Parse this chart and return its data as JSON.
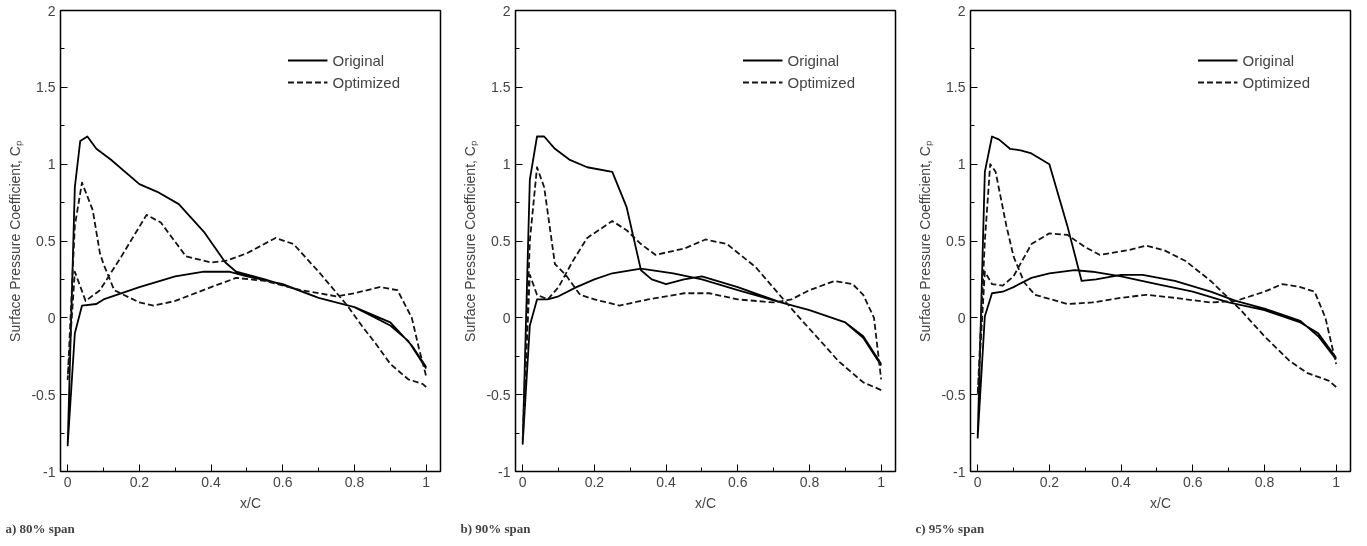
{
  "chart_data": [
    {
      "type": "line",
      "xlabel": "x/C",
      "ylabel": "Surface Pressure Coefficient, Cₚ",
      "xlim": [
        -0.02,
        1.04
      ],
      "ylim": [
        -1,
        2
      ],
      "xticks": [
        0,
        0.2,
        0.4,
        0.6,
        0.8,
        1
      ],
      "yticks": [
        -1,
        -0.5,
        0,
        0.5,
        1,
        1.5,
        2
      ],
      "legend": "top right",
      "annotations": [
        "a) 80% span"
      ],
      "series": [
        {
          "name": "Original",
          "color": "#000000",
          "line_style": "solid",
          "x": [
            1,
            0.95,
            0.9,
            0.8,
            0.7,
            0.6,
            0.5,
            0.45,
            0.38,
            0.3,
            0.2,
            0.1,
            0.08,
            0.04,
            0.02,
            0,
            0.02,
            0.035,
            0.055,
            0.08,
            0.12,
            0.2,
            0.25,
            0.31,
            0.38,
            0.44,
            0.47,
            0.55,
            0.62,
            0.7,
            0.8,
            0.9,
            0.96,
            1
          ],
          "values": [
            -0.33,
            -0.15,
            -0.05,
            0.07,
            0.13,
            0.22,
            0.27,
            0.3,
            0.3,
            0.27,
            0.2,
            0.12,
            0.09,
            0.08,
            -0.1,
            -0.83,
            0.85,
            1.15,
            1.18,
            1.1,
            1.03,
            0.87,
            0.82,
            0.74,
            0.56,
            0.36,
            0.3,
            0.25,
            0.2,
            0.13,
            0.07,
            -0.03,
            -0.18,
            -0.32
          ]
        },
        {
          "name": "Optimized",
          "color": "#141414",
          "line_style": "dashed",
          "x": [
            1,
            0.99,
            0.95,
            0.9,
            0.86,
            0.82,
            0.78,
            0.7,
            0.63,
            0.58,
            0.5,
            0.44,
            0.4,
            0.33,
            0.26,
            0.22,
            0.15,
            0.09,
            0.05,
            0.02,
            0,
            0.02,
            0.04,
            0.07,
            0.09,
            0.1,
            0.13,
            0.2,
            0.24,
            0.3,
            0.4,
            0.47,
            0.55,
            0.65,
            0.75,
            0.8,
            0.87,
            0.92,
            0.96,
            0.98,
            1
          ],
          "values": [
            -0.45,
            -0.43,
            -0.4,
            -0.3,
            -0.17,
            -0.05,
            0.08,
            0.3,
            0.48,
            0.52,
            0.42,
            0.37,
            0.36,
            0.4,
            0.62,
            0.67,
            0.4,
            0.18,
            0.11,
            0.3,
            -0.4,
            0.6,
            0.88,
            0.7,
            0.42,
            0.35,
            0.18,
            0.1,
            0.08,
            0.11,
            0.2,
            0.26,
            0.24,
            0.18,
            0.14,
            0.16,
            0.2,
            0.18,
            0.0,
            -0.2,
            -0.38
          ]
        }
      ]
    },
    {
      "type": "line",
      "xlabel": "x/C",
      "ylabel": "Surface Pressure Coefficient, Cₚ",
      "xlim": [
        -0.02,
        1.04
      ],
      "ylim": [
        -1,
        2
      ],
      "xticks": [
        0,
        0.2,
        0.4,
        0.6,
        0.8,
        1
      ],
      "yticks": [
        -1,
        -0.5,
        0,
        0.5,
        1,
        1.5,
        2
      ],
      "legend": "top right",
      "annotations": [
        "b) 90% span"
      ],
      "series": [
        {
          "name": "Original",
          "color": "#000000",
          "line_style": "solid",
          "x": [
            1,
            0.95,
            0.9,
            0.8,
            0.72,
            0.6,
            0.5,
            0.45,
            0.4,
            0.36,
            0.33,
            0.29,
            0.25,
            0.18,
            0.13,
            0.09,
            0.06,
            0.04,
            0.02,
            0,
            0.02,
            0.04,
            0.07,
            0.1,
            0.15,
            0.2,
            0.25,
            0.33,
            0.42,
            0.5,
            0.6,
            0.72,
            0.8,
            0.9,
            0.95,
            1
          ],
          "values": [
            -0.3,
            -0.12,
            -0.03,
            0.05,
            0.1,
            0.2,
            0.27,
            0.25,
            0.22,
            0.25,
            0.31,
            0.72,
            0.95,
            0.98,
            1.03,
            1.1,
            1.18,
            1.18,
            0.9,
            -0.82,
            -0.05,
            0.12,
            0.12,
            0.14,
            0.2,
            0.25,
            0.29,
            0.32,
            0.29,
            0.25,
            0.18,
            0.1,
            0.05,
            -0.03,
            -0.13,
            -0.31
          ]
        },
        {
          "name": "Optimized",
          "color": "#141414",
          "line_style": "dashed",
          "x": [
            1,
            0.95,
            0.88,
            0.85,
            0.78,
            0.72,
            0.65,
            0.57,
            0.51,
            0.45,
            0.37,
            0.33,
            0.29,
            0.25,
            0.18,
            0.14,
            0.1,
            0.07,
            0.04,
            0.02,
            0,
            0.02,
            0.04,
            0.06,
            0.09,
            0.12,
            0.16,
            0.2,
            0.27,
            0.35,
            0.45,
            0.52,
            0.6,
            0.7,
            0.75,
            0.8,
            0.87,
            0.92,
            0.95,
            0.98,
            1
          ],
          "values": [
            -0.47,
            -0.42,
            -0.28,
            -0.2,
            -0.02,
            0.14,
            0.33,
            0.48,
            0.51,
            0.45,
            0.41,
            0.48,
            0.57,
            0.63,
            0.52,
            0.37,
            0.2,
            0.12,
            0.15,
            0.28,
            -0.8,
            0.5,
            0.98,
            0.85,
            0.35,
            0.28,
            0.15,
            0.12,
            0.08,
            0.12,
            0.16,
            0.16,
            0.12,
            0.1,
            0.12,
            0.18,
            0.24,
            0.22,
            0.15,
            0.0,
            -0.4
          ]
        }
      ]
    },
    {
      "type": "line",
      "xlabel": "x/C",
      "ylabel": "Surface Pressure Coefficient, Cₚ",
      "xlim": [
        -0.02,
        1.04
      ],
      "ylim": [
        -1,
        2
      ],
      "xticks": [
        0,
        0.2,
        0.4,
        0.6,
        0.8,
        1
      ],
      "yticks": [
        -1,
        -0.5,
        0,
        0.5,
        1,
        1.5,
        2
      ],
      "legend": "top right",
      "annotations": [
        "c) 95% span"
      ],
      "series": [
        {
          "name": "Original",
          "color": "#000000",
          "line_style": "solid",
          "x": [
            1,
            0.95,
            0.9,
            0.8,
            0.72,
            0.65,
            0.55,
            0.46,
            0.4,
            0.33,
            0.29,
            0.25,
            0.2,
            0.15,
            0.12,
            0.09,
            0.06,
            0.04,
            0.02,
            0,
            0.02,
            0.04,
            0.07,
            0.1,
            0.15,
            0.2,
            0.27,
            0.32,
            0.4,
            0.5,
            0.6,
            0.7,
            0.8,
            0.9,
            0.95,
            1
          ],
          "values": [
            -0.27,
            -0.12,
            -0.02,
            0.06,
            0.11,
            0.17,
            0.24,
            0.28,
            0.28,
            0.25,
            0.24,
            0.6,
            1.0,
            1.07,
            1.09,
            1.1,
            1.16,
            1.18,
            0.95,
            -0.78,
            0.01,
            0.16,
            0.17,
            0.2,
            0.26,
            0.29,
            0.31,
            0.3,
            0.27,
            0.22,
            0.17,
            0.1,
            0.05,
            -0.03,
            -0.1,
            -0.26
          ]
        },
        {
          "name": "Optimized",
          "color": "#141414",
          "line_style": "dashed",
          "x": [
            1,
            0.98,
            0.92,
            0.87,
            0.8,
            0.73,
            0.65,
            0.58,
            0.52,
            0.47,
            0.42,
            0.34,
            0.3,
            0.25,
            0.2,
            0.15,
            0.1,
            0.07,
            0.04,
            0.02,
            0,
            0.02,
            0.035,
            0.05,
            0.08,
            0.1,
            0.13,
            0.16,
            0.25,
            0.32,
            0.4,
            0.47,
            0.55,
            0.65,
            0.72,
            0.8,
            0.85,
            0.9,
            0.94,
            0.97,
            1
          ],
          "values": [
            -0.45,
            -0.41,
            -0.36,
            -0.28,
            -0.12,
            0.06,
            0.24,
            0.37,
            0.44,
            0.47,
            0.44,
            0.41,
            0.46,
            0.54,
            0.55,
            0.48,
            0.27,
            0.21,
            0.22,
            0.3,
            -0.5,
            0.5,
            1.0,
            0.95,
            0.6,
            0.4,
            0.23,
            0.15,
            0.09,
            0.1,
            0.13,
            0.15,
            0.13,
            0.1,
            0.11,
            0.17,
            0.22,
            0.2,
            0.17,
            0.0,
            -0.3
          ]
        }
      ]
    }
  ]
}
